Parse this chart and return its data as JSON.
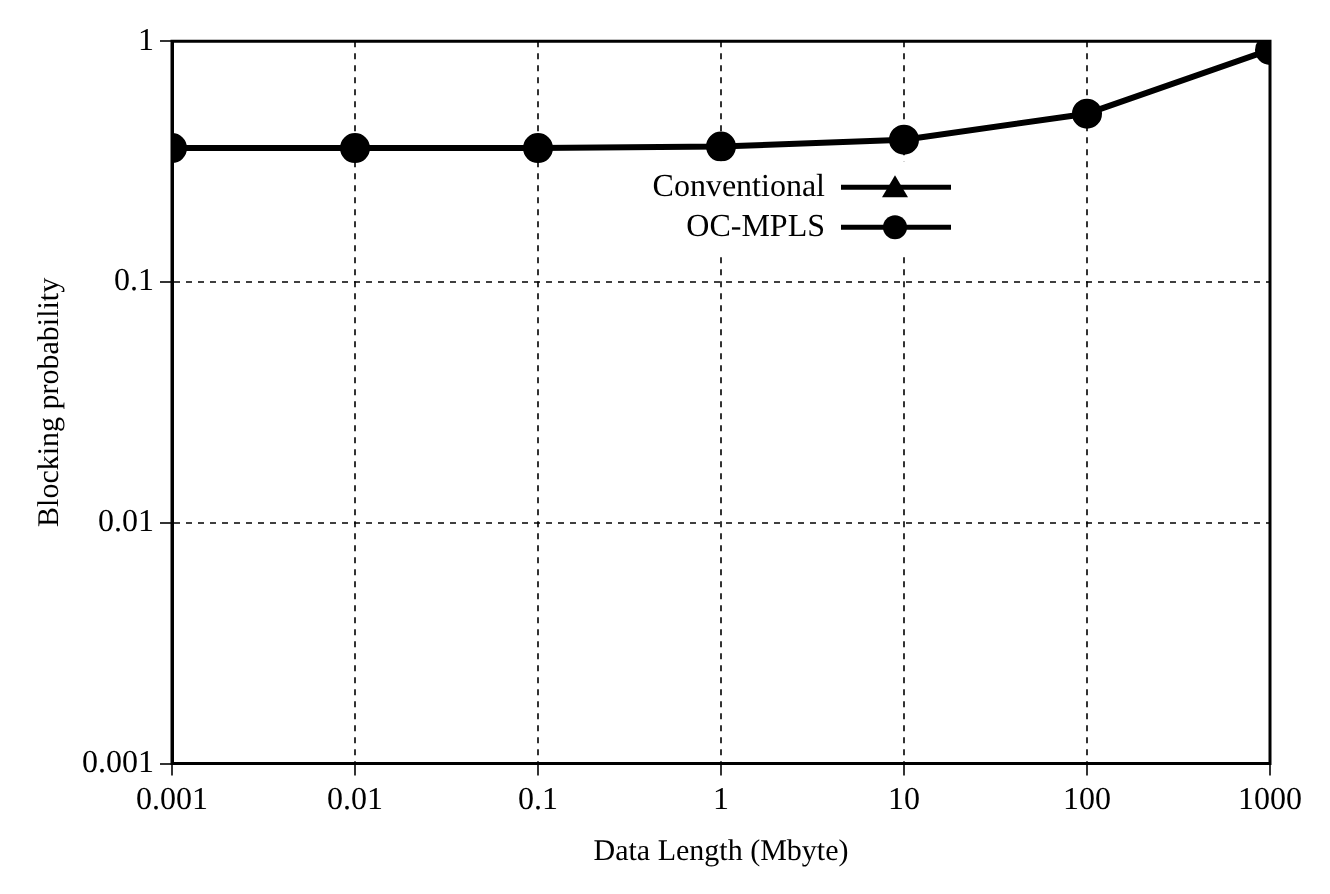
{
  "chart_data": {
    "type": "line",
    "xlabel": "Data Length (Mbyte)",
    "ylabel": "Blocking probability",
    "x": [
      0.001,
      0.01,
      0.1,
      1,
      10,
      100,
      1000
    ],
    "series": [
      {
        "name": "Conventional",
        "color": "#000000",
        "marker": "triangle",
        "values": [
          null,
          null,
          null,
          null,
          null,
          null,
          null
        ]
      },
      {
        "name": "OC-MPLS",
        "color": "#000000",
        "marker": "circle",
        "values": [
          0.36,
          0.36,
          0.36,
          0.365,
          0.39,
          0.5,
          0.92
        ]
      }
    ],
    "log": "xy",
    "xlim": [
      0.001,
      1000
    ],
    "xticks": [
      0.001,
      0.01,
      0.1,
      1,
      10,
      100,
      1000
    ],
    "ylim": [
      0.001,
      1
    ],
    "yticks": [
      0.001,
      0.01,
      0.1,
      1
    ],
    "grid": true,
    "legend": "top",
    "line_style": "solid"
  }
}
